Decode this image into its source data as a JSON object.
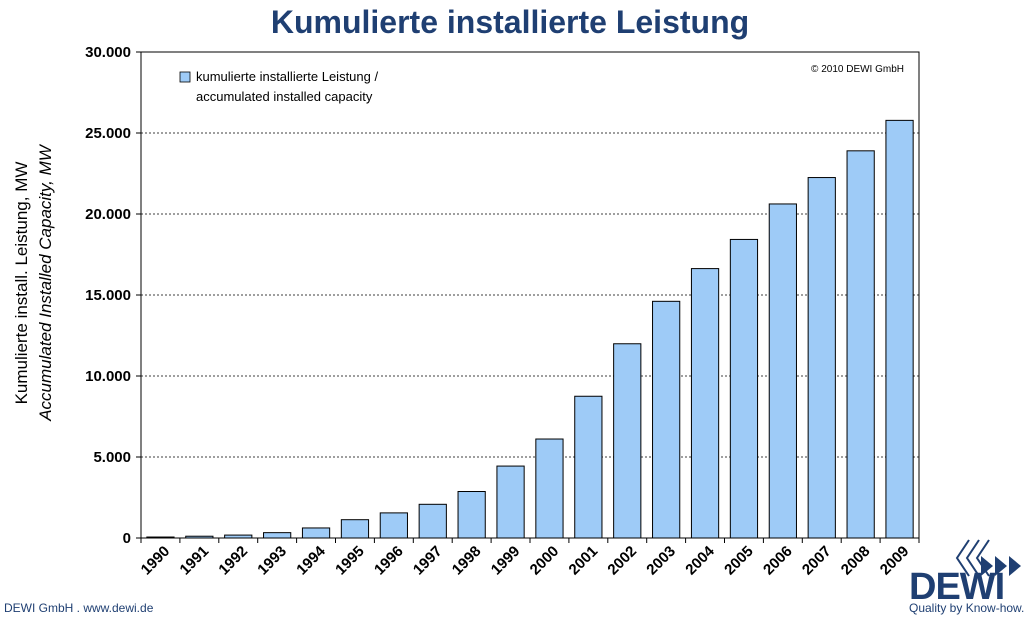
{
  "title": "Kumulierte installierte Leistung",
  "footer": {
    "left": "DEWI GmbH . www.dewi.de",
    "logo_text": "DEWI",
    "tagline": "Quality by Know-how."
  },
  "colors": {
    "bar_fill": "#9ecbf7",
    "bar_stroke": "#000000",
    "title": "#1f3f72"
  },
  "chart_data": {
    "type": "bar",
    "ylabel": "Kumulierte install. Leistung, MW",
    "ylabel2": "Accumulated Installed Capacity, MW",
    "copyright": "© 2010 DEWI GmbH",
    "legend": {
      "label_line1": "kumulierte installierte  Leistung /",
      "label_line2": "accumulated installed capacity",
      "position": "top-left"
    },
    "grid": true,
    "ylim": [
      0,
      30000
    ],
    "yticks": [
      {
        "value": 0,
        "label": "0"
      },
      {
        "value": 5000,
        "label": "5.000"
      },
      {
        "value": 10000,
        "label": "10.000"
      },
      {
        "value": 15000,
        "label": "15.000"
      },
      {
        "value": 20000,
        "label": "20.000"
      },
      {
        "value": 25000,
        "label": "25.000"
      },
      {
        "value": 30000,
        "label": "30.000"
      }
    ],
    "categories": [
      "1990",
      "1991",
      "1992",
      "1993",
      "1994",
      "1995",
      "1996",
      "1997",
      "1998",
      "1999",
      "2000",
      "2001",
      "2002",
      "2003",
      "2004",
      "2005",
      "2006",
      "2007",
      "2008",
      "2009"
    ],
    "values": [
      60,
      110,
      180,
      330,
      620,
      1130,
      1550,
      2080,
      2870,
      4440,
      6110,
      8750,
      11990,
      14610,
      16630,
      18430,
      20620,
      22250,
      23900,
      25780
    ]
  }
}
